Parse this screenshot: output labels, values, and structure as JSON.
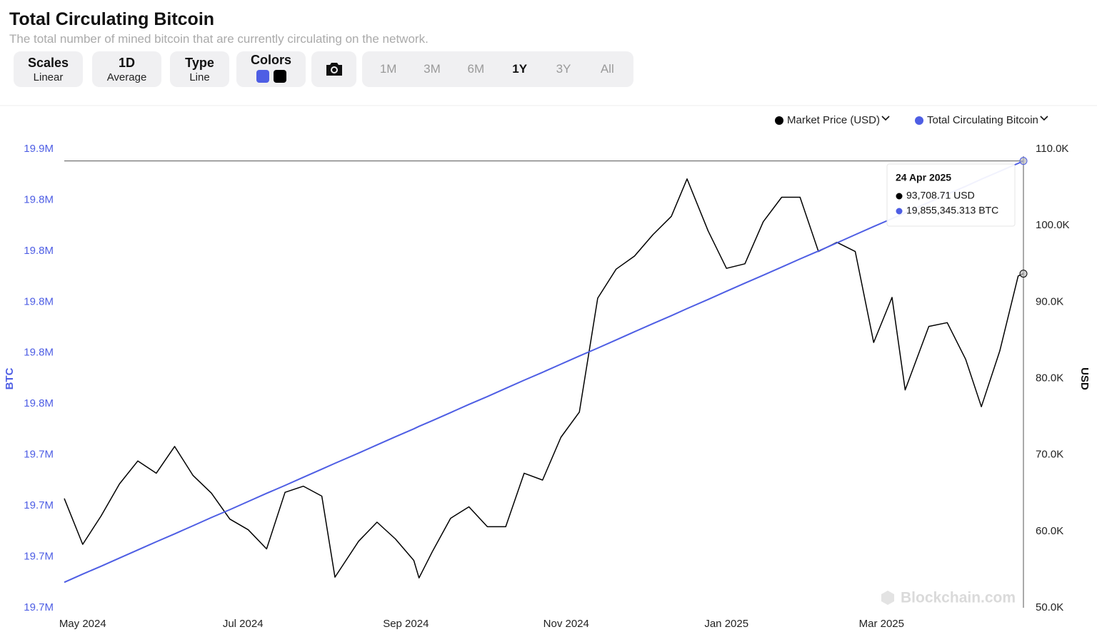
{
  "chart_data": {
    "type": "line",
    "title": "Total Circulating Bitcoin",
    "subtitle": "The total number of mined bitcoin that are currently circulating on the network.",
    "x": [
      "2024-04-24",
      "2024-05-01",
      "2024-05-08",
      "2024-05-15",
      "2024-05-22",
      "2024-05-29",
      "2024-06-05",
      "2024-06-12",
      "2024-06-19",
      "2024-06-26",
      "2024-07-03",
      "2024-07-10",
      "2024-07-17",
      "2024-07-24",
      "2024-07-31",
      "2024-08-05",
      "2024-08-14",
      "2024-08-21",
      "2024-08-28",
      "2024-09-04",
      "2024-09-06",
      "2024-09-11",
      "2024-09-18",
      "2024-09-25",
      "2024-10-02",
      "2024-10-09",
      "2024-10-16",
      "2024-10-23",
      "2024-10-30",
      "2024-11-06",
      "2024-11-13",
      "2024-11-20",
      "2024-11-27",
      "2024-12-04",
      "2024-12-11",
      "2024-12-17",
      "2024-12-25",
      "2025-01-01",
      "2025-01-08",
      "2025-01-15",
      "2025-01-22",
      "2025-01-29",
      "2025-02-05",
      "2025-02-12",
      "2025-02-19",
      "2025-02-26",
      "2025-03-05",
      "2025-03-10",
      "2025-03-19",
      "2025-03-26",
      "2025-04-02",
      "2025-04-08",
      "2025-04-15",
      "2025-04-22",
      "2025-04-24"
    ],
    "series": [
      {
        "name": "Market Price (USD)",
        "color": "#000000",
        "axis": "y2",
        "values": [
          64300,
          58300,
          62000,
          66200,
          69200,
          67600,
          71100,
          67300,
          65000,
          61600,
          60200,
          57700,
          65100,
          65900,
          64600,
          54000,
          58700,
          61200,
          59000,
          56200,
          53900,
          57300,
          61700,
          63200,
          60600,
          60600,
          67600,
          66700,
          72300,
          75600,
          90500,
          94300,
          96000,
          98800,
          101200,
          106100,
          99300,
          94400,
          95000,
          100500,
          103700,
          103700,
          96600,
          97800,
          96600,
          84700,
          90600,
          78500,
          86800,
          87300,
          82500,
          76300,
          83600,
          93400,
          93708.71
        ]
      },
      {
        "name": "Total Circulating Bitcoin",
        "color": "#4e5ee4",
        "axis": "y",
        "values": [
          19690000,
          19693200,
          19696300,
          19699500,
          19702700,
          19705900,
          19709000,
          19712200,
          19715400,
          19718500,
          19721700,
          19724900,
          19728000,
          19731200,
          19734400,
          19736700,
          19740700,
          19743900,
          19747100,
          19750200,
          19751200,
          19753400,
          19756600,
          19759800,
          19762900,
          19766100,
          19769300,
          19772400,
          19775600,
          19778800,
          19781900,
          19785100,
          19788300,
          19791500,
          19794600,
          19797400,
          19801000,
          19804200,
          19807400,
          19810500,
          19813700,
          19816900,
          19820000,
          19823200,
          19826400,
          19829600,
          19832700,
          19835000,
          19839100,
          19842300,
          19845400,
          19848200,
          19851300,
          19854400,
          19855345.313
        ]
      }
    ],
    "xlim": [
      "2024-04-24",
      "2025-04-24"
    ],
    "xticks": [
      {
        "value": "2024-05-01",
        "label": "May 2024"
      },
      {
        "value": "2024-07-01",
        "label": "Jul 2024"
      },
      {
        "value": "2024-09-01",
        "label": "Sep 2024"
      },
      {
        "value": "2024-11-01",
        "label": "Nov 2024"
      },
      {
        "value": "2025-01-01",
        "label": "Jan 2025"
      },
      {
        "value": "2025-03-01",
        "label": "Mar 2025"
      }
    ],
    "ylim": [
      19680000,
      19860000
    ],
    "yticks": [
      {
        "value": 19680000,
        "label": "19.7M"
      },
      {
        "value": 19700000,
        "label": "19.7M"
      },
      {
        "value": 19720000,
        "label": "19.7M"
      },
      {
        "value": 19740000,
        "label": "19.7M"
      },
      {
        "value": 19760000,
        "label": "19.8M"
      },
      {
        "value": 19780000,
        "label": "19.8M"
      },
      {
        "value": 19800000,
        "label": "19.8M"
      },
      {
        "value": 19820000,
        "label": "19.8M"
      },
      {
        "value": 19840000,
        "label": "19.8M"
      },
      {
        "value": 19860000,
        "label": "19.9M"
      }
    ],
    "y2lim": [
      50000,
      110000
    ],
    "y2ticks": [
      {
        "value": 50000,
        "label": "50.0K"
      },
      {
        "value": 60000,
        "label": "60.0K"
      },
      {
        "value": 70000,
        "label": "70.0K"
      },
      {
        "value": 80000,
        "label": "80.0K"
      },
      {
        "value": 90000,
        "label": "90.0K"
      },
      {
        "value": 100000,
        "label": "100.0K"
      },
      {
        "value": 110000,
        "label": "110.0K"
      }
    ],
    "ylabel": "BTC",
    "y2label": "USD",
    "legend": "top-right",
    "tooltip": {
      "date": "24 Apr 2025",
      "lines": [
        "93,708.71 USD",
        "19,855,345.313 BTC"
      ]
    },
    "watermark": "Blockchain.com"
  },
  "controls": [
    {
      "title": "Scales",
      "value": "Linear"
    },
    {
      "title": "1D",
      "value": "Average"
    },
    {
      "title": "Type",
      "value": "Line"
    }
  ],
  "colors_label": "Colors",
  "ranges": [
    "1M",
    "3M",
    "6M",
    "1Y",
    "3Y",
    "All"
  ],
  "active_range": "1Y"
}
